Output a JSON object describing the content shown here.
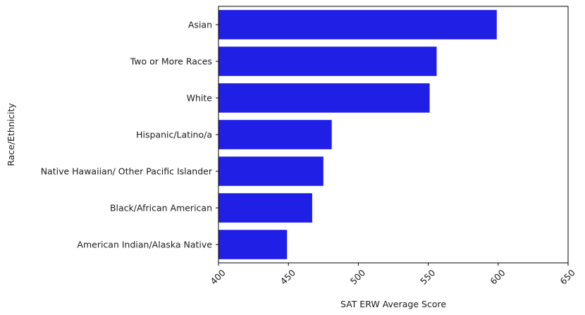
{
  "chart_data": {
    "type": "bar",
    "orientation": "horizontal",
    "title": "",
    "xlabel": "SAT ERW Average Score",
    "ylabel": "Race/Ethnicity",
    "categories": [
      "Asian",
      "Two or More Races",
      "White",
      "Hispanic/Latino/a",
      "Native Hawaiian/ Other Pacific Islander",
      "Black/African American",
      "American Indian/Alaska Native"
    ],
    "values": [
      599,
      556,
      551,
      481,
      475,
      467,
      449
    ],
    "xlim": [
      400,
      650
    ],
    "xticks": [
      "400",
      "450",
      "500",
      "550",
      "600",
      "650"
    ],
    "xtick_rotation": "45 degrees",
    "bar_color": "#1f1fe6",
    "grid": false,
    "legend": "none"
  }
}
